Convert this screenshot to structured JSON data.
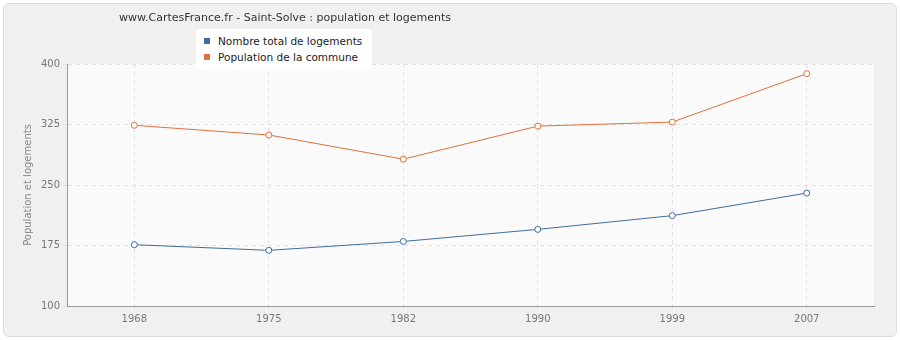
{
  "chart_data": {
    "type": "line",
    "title": "www.CartesFrance.fr - Saint-Solve : population et logements",
    "y_label": "Population et logements",
    "categories": [
      "1968",
      "1975",
      "1982",
      "1990",
      "1999",
      "2007"
    ],
    "series": [
      {
        "name": "Nombre total de logements",
        "color": "#3e6d9c",
        "values": [
          176,
          169,
          180,
          195,
          212,
          240
        ]
      },
      {
        "name": "Population de la commune",
        "color": "#e0703d",
        "values": [
          324,
          312,
          282,
          323,
          328,
          388
        ]
      }
    ],
    "ylim": [
      100,
      400
    ],
    "yticks": [
      100,
      175,
      250,
      325,
      400
    ],
    "grid": true,
    "legend": "top",
    "marker": "circle"
  }
}
